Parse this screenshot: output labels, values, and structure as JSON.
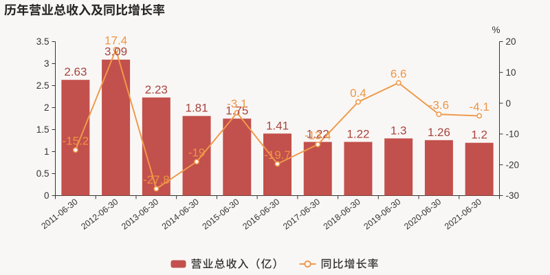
{
  "title": "历年营业总收入及同比增长率",
  "right_axis_unit": "%",
  "legend": {
    "revenue_label": "营业总收入（亿）",
    "growth_label": "同比增长率"
  },
  "colors": {
    "background": "#f9f7f5",
    "bar": "#c2504c",
    "bar_value_label": "#a6443f",
    "line": "#ef9a4c",
    "line_value_label": "#ef9443",
    "axis": "#333333",
    "axis_tick_label": "#333333",
    "title_text": "#262626",
    "legend_text": "#333333"
  },
  "chart_data": {
    "type": "bar+line",
    "title": "历年营业总收入及同比增长率",
    "categories": [
      "2011-06-30",
      "2012-06-30",
      "2013-06-30",
      "2014-06-30",
      "2015-06-30",
      "2016-06-30",
      "2017-06-30",
      "2018-06-30",
      "2019-06-30",
      "2020-06-30",
      "2021-06-30"
    ],
    "series": [
      {
        "name": "营业总收入（亿）",
        "type": "bar",
        "y_axis": "left",
        "values": [
          2.63,
          3.09,
          2.23,
          1.81,
          1.75,
          1.41,
          1.22,
          1.22,
          1.3,
          1.26,
          1.2
        ]
      },
      {
        "name": "同比增长率",
        "type": "line",
        "y_axis": "right",
        "unit": "%",
        "values": [
          -15.2,
          17.4,
          -27.8,
          -19,
          -3.1,
          -19.7,
          -13.4,
          0.4,
          6.6,
          -3.6,
          -4.1
        ]
      }
    ],
    "left_axis": {
      "min": 0,
      "max": 3.5,
      "ticks": [
        0,
        0.5,
        1,
        1.5,
        2,
        2.5,
        3,
        3.5
      ]
    },
    "right_axis": {
      "min": -30,
      "max": 20,
      "ticks": [
        -30,
        -20,
        -10,
        0,
        10,
        20
      ],
      "unit": "%"
    },
    "legend_position": "bottom",
    "grid_lines": "none"
  }
}
